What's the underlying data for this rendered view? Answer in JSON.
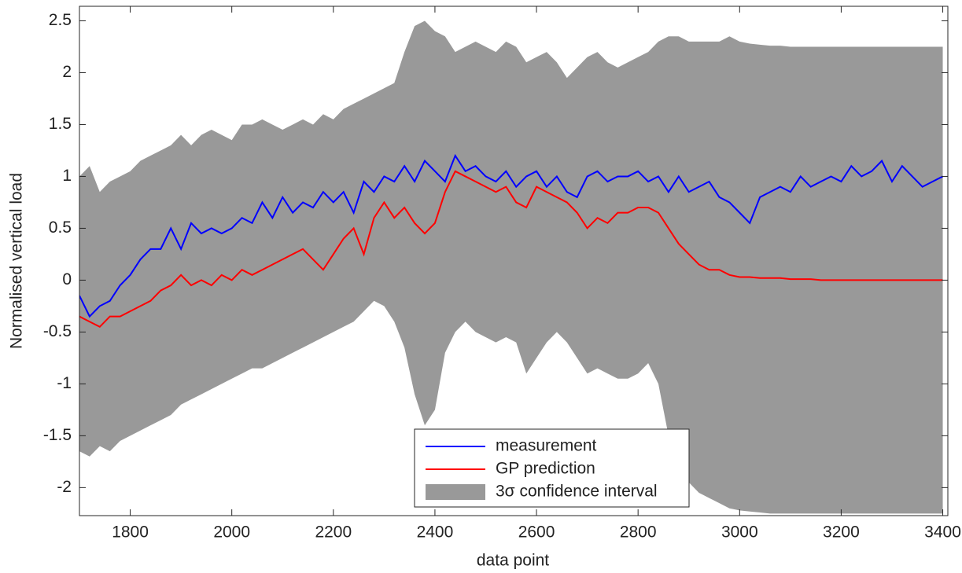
{
  "chart_data": {
    "type": "line",
    "xlabel": "data point",
    "ylabel": "Normalised vertical load",
    "xlim": [
      1700,
      3410
    ],
    "ylim": [
      -2.27,
      2.64
    ],
    "xticks": [
      1800,
      2000,
      2200,
      2400,
      2600,
      2800,
      3000,
      3200,
      3400
    ],
    "yticks": [
      -2,
      -1.5,
      -1,
      -0.5,
      0,
      0.5,
      1,
      1.5,
      2,
      2.5
    ],
    "legend": "lower center",
    "x": [
      1700,
      1720,
      1740,
      1760,
      1780,
      1800,
      1820,
      1840,
      1860,
      1880,
      1900,
      1920,
      1940,
      1960,
      1980,
      2000,
      2020,
      2040,
      2060,
      2080,
      2100,
      2120,
      2140,
      2160,
      2180,
      2200,
      2220,
      2240,
      2260,
      2280,
      2300,
      2320,
      2340,
      2360,
      2380,
      2400,
      2420,
      2440,
      2460,
      2480,
      2500,
      2520,
      2540,
      2560,
      2580,
      2600,
      2620,
      2640,
      2660,
      2680,
      2700,
      2720,
      2740,
      2760,
      2780,
      2800,
      2820,
      2840,
      2860,
      2880,
      2900,
      2920,
      2940,
      2960,
      2980,
      3000,
      3020,
      3040,
      3060,
      3080,
      3100,
      3120,
      3140,
      3160,
      3180,
      3200,
      3220,
      3240,
      3260,
      3280,
      3300,
      3320,
      3340,
      3360,
      3380,
      3400
    ],
    "band": {
      "name": "3σ confidence interval",
      "color": "#999999",
      "upper": [
        1.0,
        1.1,
        0.85,
        0.95,
        1.0,
        1.05,
        1.15,
        1.2,
        1.25,
        1.3,
        1.4,
        1.3,
        1.4,
        1.45,
        1.4,
        1.35,
        1.5,
        1.5,
        1.55,
        1.5,
        1.45,
        1.5,
        1.55,
        1.5,
        1.6,
        1.55,
        1.65,
        1.7,
        1.75,
        1.8,
        1.85,
        1.9,
        2.2,
        2.45,
        2.5,
        2.4,
        2.35,
        2.2,
        2.25,
        2.3,
        2.25,
        2.2,
        2.3,
        2.25,
        2.1,
        2.15,
        2.2,
        2.1,
        1.95,
        2.05,
        2.15,
        2.2,
        2.1,
        2.05,
        2.1,
        2.15,
        2.2,
        2.3,
        2.35,
        2.35,
        2.3,
        2.3,
        2.3,
        2.3,
        2.35,
        2.3,
        2.28,
        2.27,
        2.26,
        2.26,
        2.25,
        2.25,
        2.25,
        2.25,
        2.25,
        2.25,
        2.25,
        2.25,
        2.25,
        2.25,
        2.25,
        2.25,
        2.25,
        2.25,
        2.25,
        2.25
      ],
      "lower": [
        -1.65,
        -1.7,
        -1.6,
        -1.65,
        -1.55,
        -1.5,
        -1.45,
        -1.4,
        -1.35,
        -1.3,
        -1.2,
        -1.15,
        -1.1,
        -1.05,
        -1.0,
        -0.95,
        -0.9,
        -0.85,
        -0.85,
        -0.8,
        -0.75,
        -0.7,
        -0.65,
        -0.6,
        -0.55,
        -0.5,
        -0.45,
        -0.4,
        -0.3,
        -0.2,
        -0.25,
        -0.4,
        -0.65,
        -1.1,
        -1.4,
        -1.25,
        -0.7,
        -0.5,
        -0.4,
        -0.5,
        -0.55,
        -0.6,
        -0.55,
        -0.6,
        -0.9,
        -0.75,
        -0.6,
        -0.5,
        -0.6,
        -0.75,
        -0.9,
        -0.85,
        -0.9,
        -0.95,
        -0.95,
        -0.9,
        -0.8,
        -1.0,
        -1.5,
        -1.8,
        -1.95,
        -2.05,
        -2.1,
        -2.15,
        -2.2,
        -2.22,
        -2.23,
        -2.24,
        -2.25,
        -2.25,
        -2.25,
        -2.25,
        -2.25,
        -2.25,
        -2.25,
        -2.25,
        -2.25,
        -2.25,
        -2.25,
        -2.25,
        -2.25,
        -2.25,
        -2.25,
        -2.25,
        -2.25,
        -2.25
      ]
    },
    "series": [
      {
        "name": "measurement",
        "color": "#0000ff",
        "values": [
          -0.15,
          -0.35,
          -0.25,
          -0.2,
          -0.05,
          0.05,
          0.2,
          0.3,
          0.3,
          0.5,
          0.3,
          0.55,
          0.45,
          0.5,
          0.45,
          0.5,
          0.6,
          0.55,
          0.75,
          0.6,
          0.8,
          0.65,
          0.75,
          0.7,
          0.85,
          0.75,
          0.85,
          0.65,
          0.95,
          0.85,
          1.0,
          0.95,
          1.1,
          0.95,
          1.15,
          1.05,
          0.95,
          1.2,
          1.05,
          1.1,
          1.0,
          0.95,
          1.05,
          0.9,
          1.0,
          1.05,
          0.9,
          1.0,
          0.85,
          0.8,
          1.0,
          1.05,
          0.95,
          1.0,
          1.0,
          1.05,
          0.95,
          1.0,
          0.85,
          1.0,
          0.85,
          0.9,
          0.95,
          0.8,
          0.75,
          0.65,
          0.55,
          0.8,
          0.85,
          0.9,
          0.85,
          1.0,
          0.9,
          0.95,
          1.0,
          0.95,
          1.1,
          1.0,
          1.05,
          1.15,
          0.95,
          1.1,
          1.0,
          0.9,
          0.95,
          1.0
        ]
      },
      {
        "name": "GP prediction",
        "color": "#ff0000",
        "values": [
          -0.35,
          -0.4,
          -0.45,
          -0.35,
          -0.35,
          -0.3,
          -0.25,
          -0.2,
          -0.1,
          -0.05,
          0.05,
          -0.05,
          0.0,
          -0.05,
          0.05,
          0.0,
          0.1,
          0.05,
          0.1,
          0.15,
          0.2,
          0.25,
          0.3,
          0.2,
          0.1,
          0.25,
          0.4,
          0.5,
          0.25,
          0.6,
          0.75,
          0.6,
          0.7,
          0.55,
          0.45,
          0.55,
          0.85,
          1.05,
          1.0,
          0.95,
          0.9,
          0.85,
          0.9,
          0.75,
          0.7,
          0.9,
          0.85,
          0.8,
          0.75,
          0.65,
          0.5,
          0.6,
          0.55,
          0.65,
          0.65,
          0.7,
          0.7,
          0.65,
          0.5,
          0.35,
          0.25,
          0.15,
          0.1,
          0.1,
          0.05,
          0.03,
          0.03,
          0.02,
          0.02,
          0.02,
          0.01,
          0.01,
          0.01,
          0,
          0,
          0,
          0,
          0,
          0,
          0,
          0,
          0,
          0,
          0,
          0,
          0
        ]
      }
    ]
  }
}
